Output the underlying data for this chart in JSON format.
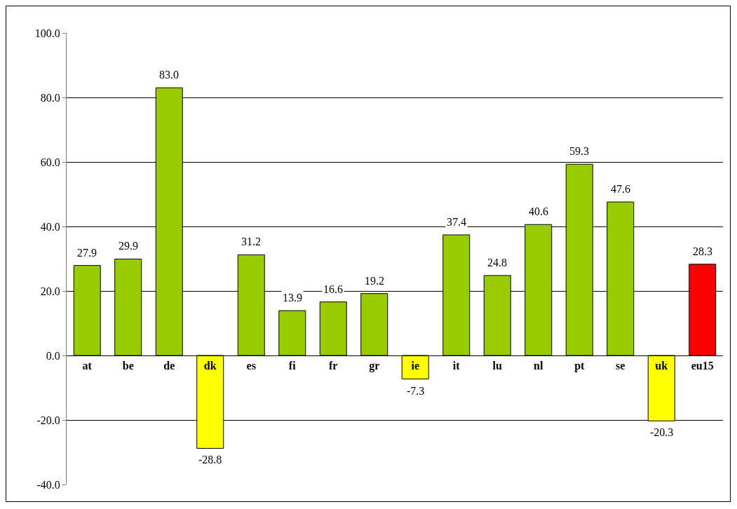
{
  "chart_data": {
    "type": "bar",
    "categories": [
      "at",
      "be",
      "de",
      "dk",
      "es",
      "fi",
      "fr",
      "gr",
      "ie",
      "it",
      "lu",
      "nl",
      "pt",
      "se",
      "uk",
      "eu15"
    ],
    "values": [
      27.9,
      29.9,
      83.0,
      -28.8,
      31.2,
      13.9,
      16.6,
      19.2,
      -7.3,
      37.4,
      24.8,
      40.6,
      59.3,
      47.6,
      -20.3,
      28.3
    ],
    "value_labels": [
      "27.9",
      "29.9",
      "83.0",
      "-28.8",
      "31.2",
      "13.9",
      "16.6",
      "19.2",
      "-7.3",
      "37.4",
      "24.8",
      "40.6",
      "59.3",
      "47.6",
      "-20.3",
      "28.3"
    ],
    "colors": [
      "#99cc00",
      "#99cc00",
      "#99cc00",
      "#ffff00",
      "#99cc00",
      "#99cc00",
      "#99cc00",
      "#99cc00",
      "#ffff00",
      "#99cc00",
      "#99cc00",
      "#99cc00",
      "#99cc00",
      "#99cc00",
      "#ffff00",
      "#ff0000"
    ],
    "ylim": [
      -40,
      100
    ],
    "yticks": [
      {
        "value": -40,
        "label": "-40.0"
      },
      {
        "value": -20,
        "label": "-20.0"
      },
      {
        "value": 0,
        "label": "0.0"
      },
      {
        "value": 20,
        "label": "20.0"
      },
      {
        "value": 40,
        "label": "40.0"
      },
      {
        "value": 60,
        "label": "60.0"
      },
      {
        "value": 80,
        "label": "80.0"
      },
      {
        "value": 100,
        "label": "100.0"
      }
    ],
    "grid": "y"
  }
}
